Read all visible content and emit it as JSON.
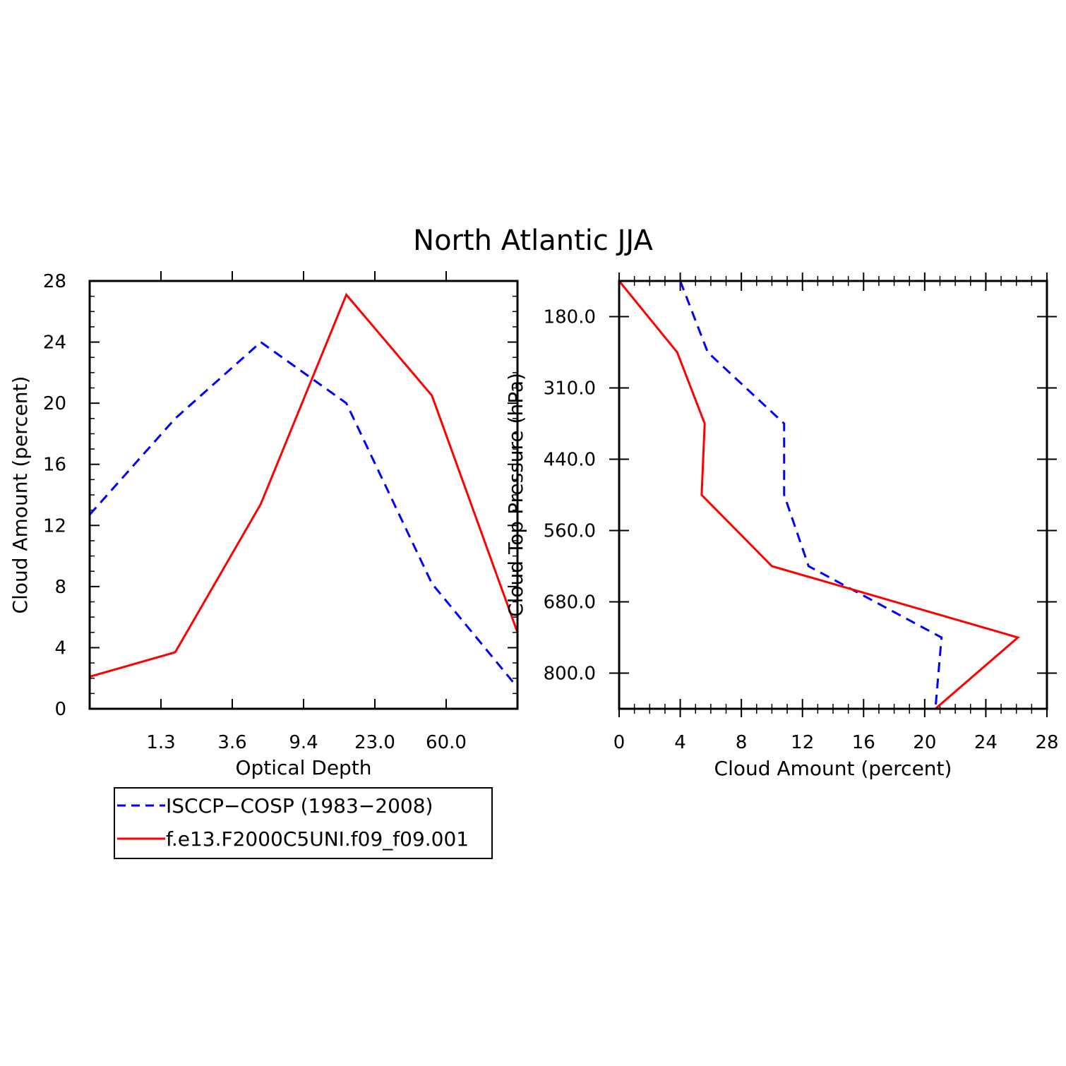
{
  "title": "North Atlantic JJA",
  "chart_data": [
    {
      "type": "line",
      "xlabel": "Optical Depth",
      "ylabel": "Cloud Amount (percent)",
      "x_tick_labels": [
        "1.3",
        "3.6",
        "9.4",
        "23.0",
        "60.0"
      ],
      "y_ticks": [
        0,
        4,
        8,
        12,
        16,
        20,
        24,
        28
      ],
      "ylim": [
        0,
        28
      ],
      "series": [
        {
          "name": "ISCCP-COSP (1983-2008)",
          "color": "#0000ff",
          "dash": "dashed",
          "values": [
            12.7,
            19.0,
            24.0,
            20.0,
            8.2,
            1.4
          ]
        },
        {
          "name": "f.e13.F2000C5UNI.f09_f09.001",
          "color": "#ff0000",
          "dash": "solid",
          "values": [
            2.1,
            3.7,
            13.4,
            27.1,
            20.5,
            5.0
          ]
        }
      ]
    },
    {
      "type": "line",
      "xlabel": "Cloud Amount (percent)",
      "ylabel": "Cloud Top Pressure (hPa)",
      "x_ticks": [
        0,
        4,
        8,
        12,
        16,
        20,
        24,
        28
      ],
      "xlim": [
        0,
        28
      ],
      "y_tick_labels": [
        "180.0",
        "310.0",
        "440.0",
        "560.0",
        "680.0",
        "800.0"
      ],
      "series": [
        {
          "name": "ISCCP-COSP (1983-2008)",
          "color": "#0000ff",
          "dash": "dashed",
          "values": [
            4.0,
            5.8,
            10.8,
            10.8,
            12.4,
            21.1,
            20.7
          ]
        },
        {
          "name": "f.e13.F2000C5UNI.f09_f09.001",
          "color": "#ff0000",
          "dash": "solid",
          "values": [
            0.0,
            3.8,
            5.6,
            5.4,
            10.0,
            26.1,
            20.7
          ]
        }
      ]
    }
  ],
  "legend": [
    {
      "label": "ISCCP−COSP (1983−2008)",
      "color": "#0000ff",
      "dash": "dashed"
    },
    {
      "label": "f.e13.F2000C5UNI.f09_f09.001",
      "color": "#ff0000",
      "dash": "solid"
    }
  ]
}
